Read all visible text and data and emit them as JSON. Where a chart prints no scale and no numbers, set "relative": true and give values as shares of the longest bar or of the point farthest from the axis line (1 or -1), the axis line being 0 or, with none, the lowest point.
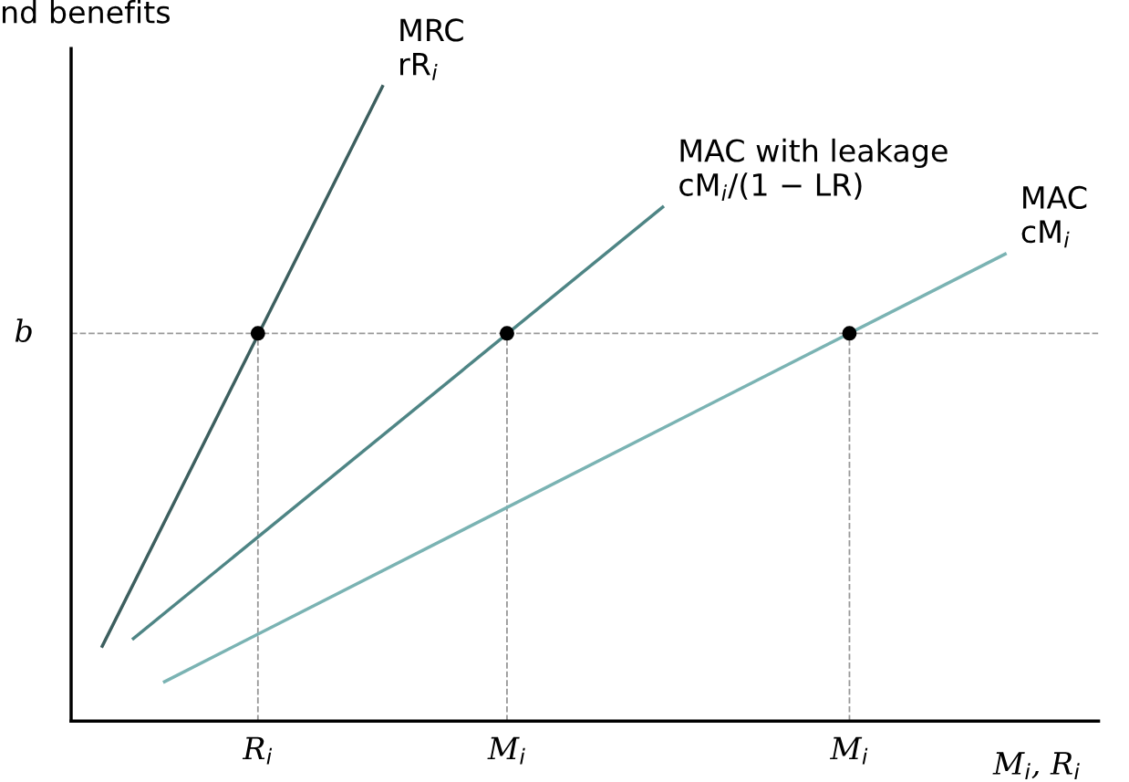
{
  "chart_data": {
    "type": "line",
    "relative": true,
    "ylabel": "nd benefits",
    "xlabel": "M$_{i}$, R$_{i}$",
    "categories": [
      null,
      null,
      null,
      null,
      null,
      null,
      "R$_{i}$",
      null,
      null,
      null,
      null,
      null,
      null,
      null,
      "M$_{i}$",
      null,
      null,
      null,
      null,
      null,
      null,
      null,
      null,
      null,
      null,
      "M$_{i}$",
      null,
      null,
      null,
      null,
      null,
      null,
      null,
      null
    ],
    "grid": false,
    "ref_lines": [
      {
        "axis": "y",
        "value": 0.611,
        "label": "b",
        "color": "#999999",
        "line_style": "dashed"
      }
    ],
    "series": [
      {
        "name": "MRC\nrR$_{i}$",
        "color": "#3d5f5f",
        "values": [
          null,
          0.118,
          null,
          null,
          null,
          null,
          null,
          null,
          null,
          null,
          1.0,
          null,
          null,
          null,
          null,
          null,
          null,
          null,
          null,
          null,
          null,
          null,
          null,
          null,
          null,
          null,
          null,
          null,
          null,
          null,
          null,
          null,
          null,
          null
        ]
      },
      {
        "name": "MAC with leakage\ncM$_{i}$/(1 − LR)",
        "color": "#4e8585",
        "values": [
          null,
          null,
          0.13,
          null,
          null,
          null,
          null,
          null,
          null,
          null,
          null,
          null,
          null,
          null,
          null,
          null,
          null,
          null,
          null,
          0.81,
          null,
          null,
          null,
          null,
          null,
          null,
          null,
          null,
          null,
          null,
          null,
          null,
          null,
          null
        ]
      },
      {
        "name": "MAC\ncM$_{i}$",
        "color": "#7ab3b3",
        "values": [
          null,
          null,
          null,
          0.062,
          null,
          null,
          null,
          null,
          null,
          null,
          null,
          null,
          null,
          null,
          null,
          null,
          null,
          null,
          null,
          null,
          null,
          null,
          null,
          null,
          null,
          null,
          null,
          null,
          null,
          null,
          0.736,
          null,
          null,
          null
        ]
      },
      {
        "type": "scatter",
        "color": "#000000",
        "line_style": "dashed",
        "values": [
          null,
          null,
          null,
          null,
          null,
          null,
          0.611,
          null,
          null,
          null,
          null,
          null,
          null,
          null,
          0.611,
          null,
          null,
          null,
          null,
          null,
          null,
          null,
          null,
          null,
          null,
          0.611,
          null,
          null,
          null,
          null,
          null,
          null,
          null,
          null
        ]
      }
    ]
  }
}
